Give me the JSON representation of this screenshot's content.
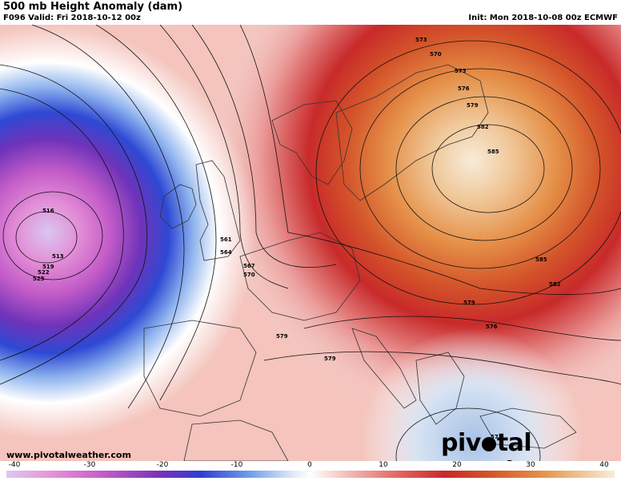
{
  "header": {
    "title": "500 mb Height Anomaly (dam)",
    "valid": "F096 Valid: Fri 2018-10-12 00z",
    "init": "Init: Mon 2018-10-08 00z ECMWF"
  },
  "footer": {
    "website": "www.pivotalweather.com",
    "brand_left": "piv",
    "brand_right": "tal weather"
  },
  "colorbar": {
    "ticks": [
      "-40",
      "-30",
      "-20",
      "-10",
      "0",
      "10",
      "20",
      "30",
      "40"
    ]
  },
  "contour_labels": {
    "l516": "516",
    "l513": "513",
    "l519": "519",
    "l522": "522",
    "l525": "525",
    "l561": "561",
    "l564": "564",
    "l567": "567",
    "l570a": "570",
    "l573a": "573",
    "l570b": "570",
    "l573b": "573",
    "l576a": "576",
    "l579a": "579",
    "l582a": "582",
    "l585a": "585",
    "l585b": "585",
    "l582b": "582",
    "l579b": "579",
    "l576b": "576",
    "l579c": "579",
    "l579d": "579",
    "l573c": "573"
  },
  "colors": {
    "strong_negative": "#8a2bb8",
    "negative": "#2f4fd6",
    "neutral": "#ffffff",
    "positive": "#d42a2a",
    "strong_positive": "#e0882e"
  }
}
